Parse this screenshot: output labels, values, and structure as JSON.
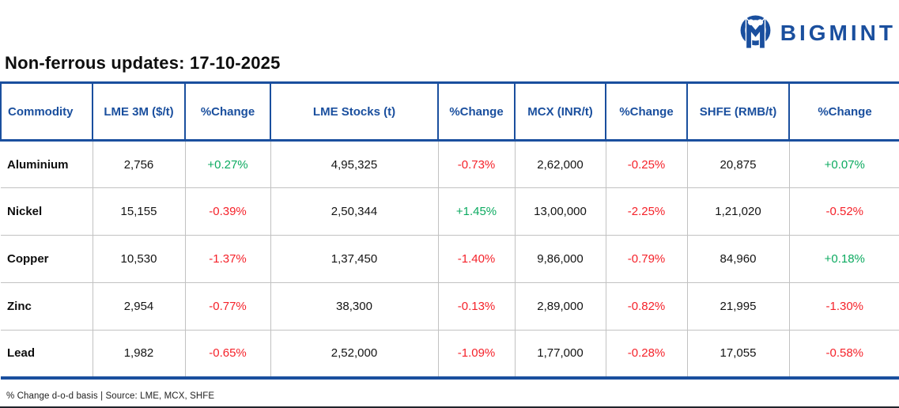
{
  "brand": {
    "name": "BIGMINT",
    "icon": "bigmint-people-m-icon"
  },
  "title": "Non-ferrous updates: 17-10-2025",
  "table": {
    "columns": [
      {
        "label": "Commodity",
        "key": "commodity",
        "type": "commodity"
      },
      {
        "label": "LME 3M ($/t)",
        "key": "lme_3m",
        "type": "value"
      },
      {
        "label": "%Change",
        "key": "lme_3m_change",
        "type": "change"
      },
      {
        "label": "LME Stocks (t)",
        "key": "lme_stocks",
        "type": "value"
      },
      {
        "label": "%Change",
        "key": "lme_stocks_change",
        "type": "change"
      },
      {
        "label": "MCX (INR/t)",
        "key": "mcx",
        "type": "value"
      },
      {
        "label": "%Change",
        "key": "mcx_change",
        "type": "change"
      },
      {
        "label": "SHFE (RMB/t)",
        "key": "shfe",
        "type": "value"
      },
      {
        "label": "%Change",
        "key": "shfe_change",
        "type": "change"
      }
    ],
    "rows": [
      {
        "commodity": "Aluminium",
        "lme_3m": "2,756",
        "lme_3m_change": "+0.27%",
        "lme_stocks": "4,95,325",
        "lme_stocks_change": "-0.73%",
        "mcx": "2,62,000",
        "mcx_change": "-0.25%",
        "shfe": "20,875",
        "shfe_change": "+0.07%"
      },
      {
        "commodity": "Nickel",
        "lme_3m": "15,155",
        "lme_3m_change": "-0.39%",
        "lme_stocks": "2,50,344",
        "lme_stocks_change": "+1.45%",
        "mcx": "13,00,000",
        "mcx_change": "-2.25%",
        "shfe": "1,21,020",
        "shfe_change": "-0.52%"
      },
      {
        "commodity": "Copper",
        "lme_3m": "10,530",
        "lme_3m_change": "-1.37%",
        "lme_stocks": "1,37,450",
        "lme_stocks_change": "-1.40%",
        "mcx": "9,86,000",
        "mcx_change": "-0.79%",
        "shfe": "84,960",
        "shfe_change": "+0.18%"
      },
      {
        "commodity": "Zinc",
        "lme_3m": "2,954",
        "lme_3m_change": "-0.77%",
        "lme_stocks": "38,300",
        "lme_stocks_change": "-0.13%",
        "mcx": "2,89,000",
        "mcx_change": "-0.82%",
        "shfe": "21,995",
        "shfe_change": "-1.30%"
      },
      {
        "commodity": "Lead",
        "lme_3m": "1,982",
        "lme_3m_change": "-0.65%",
        "lme_stocks": "2,52,000",
        "lme_stocks_change": "-1.09%",
        "mcx": "1,77,000",
        "mcx_change": "-0.28%",
        "shfe": "17,055",
        "shfe_change": "-0.58%"
      }
    ]
  },
  "footnote": "% Change d-o-d basis | Source: LME, MCX, SHFE",
  "colors": {
    "brand-blue": "#1a4f9e",
    "positive-green": "#0caa60",
    "negative-red": "#f5222a"
  },
  "chart_data": {
    "type": "table",
    "title": "Non-ferrous updates: 17-10-2025",
    "columns": [
      "Commodity",
      "LME 3M ($/t)",
      "%Change",
      "LME Stocks (t)",
      "%Change",
      "MCX (INR/t)",
      "%Change",
      "SHFE (RMB/t)",
      "%Change"
    ],
    "rows": [
      [
        "Aluminium",
        "2,756",
        "+0.27%",
        "4,95,325",
        "-0.73%",
        "2,62,000",
        "-0.25%",
        "20,875",
        "+0.07%"
      ],
      [
        "Nickel",
        "15,155",
        "-0.39%",
        "2,50,344",
        "+1.45%",
        "13,00,000",
        "-2.25%",
        "1,21,020",
        "-0.52%"
      ],
      [
        "Copper",
        "10,530",
        "-1.37%",
        "1,37,450",
        "-1.40%",
        "9,86,000",
        "-0.79%",
        "84,960",
        "+0.18%"
      ],
      [
        "Zinc",
        "2,954",
        "-0.77%",
        "38,300",
        "-0.13%",
        "2,89,000",
        "-0.82%",
        "21,995",
        "-1.30%"
      ],
      [
        "Lead",
        "1,982",
        "-0.65%",
        "2,52,000",
        "-1.09%",
        "1,77,000",
        "-0.28%",
        "17,055",
        "-0.58%"
      ]
    ],
    "notes": "% Change d-o-d basis | Source: LME, MCX, SHFE"
  }
}
